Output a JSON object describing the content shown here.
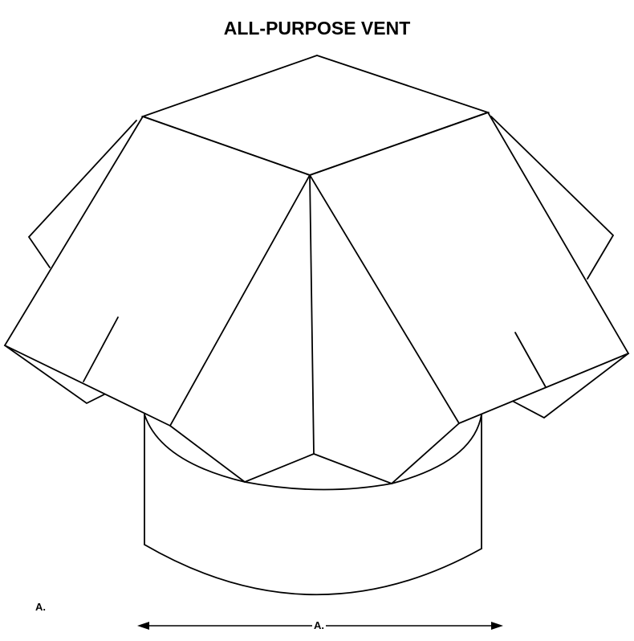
{
  "title": "ALL-PURPOSE VENT",
  "labels": {
    "side_label": "A.",
    "dimension_label": "A."
  },
  "colors": {
    "line": "#000000",
    "background": "#ffffff"
  }
}
